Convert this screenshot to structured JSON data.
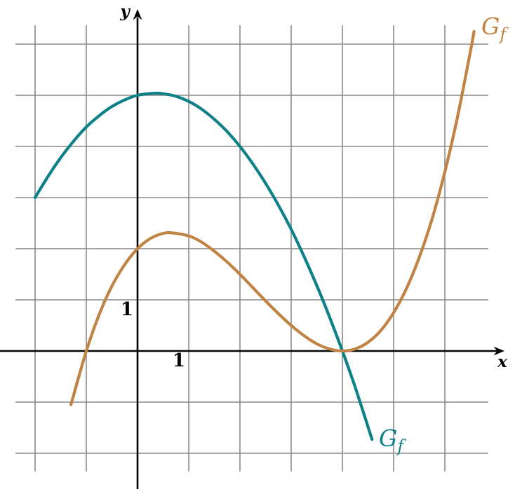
{
  "chart_data": {
    "type": "line",
    "title": "",
    "axes": {
      "xlabel": "x",
      "ylabel": "y",
      "x_tick_label": "1",
      "y_tick_label": "1",
      "xlim": [
        -2.4,
        7.2
      ],
      "ylim": [
        -2.4,
        6.6
      ],
      "grid": true,
      "x_gridlines": [
        -2,
        -1,
        0,
        1,
        2,
        3,
        4,
        5,
        6
      ],
      "y_gridlines": [
        -2,
        -1,
        0,
        1,
        2,
        3,
        4,
        5,
        6
      ],
      "grid_color": "#8a8a8a",
      "axis_color": "#000000"
    },
    "series": [
      {
        "name": "teal-parabola",
        "label_main": "G",
        "label_sub": "f",
        "color": "#0e8088",
        "key_points": {
          "left_end": [
            -2,
            3
          ],
          "vertex_max": [
            0.33,
            5.04
          ],
          "y_intercept": [
            0,
            5
          ],
          "x_intercept": [
            4,
            0
          ],
          "right_end": [
            4.58,
            -1.73
          ]
        },
        "points": [
          [
            -2,
            3
          ],
          [
            -1.75,
            3.41
          ],
          [
            -1.5,
            3.78
          ],
          [
            -1.25,
            4.1
          ],
          [
            -1,
            4.38
          ],
          [
            -0.75,
            4.6
          ],
          [
            -0.5,
            4.78
          ],
          [
            -0.25,
            4.91
          ],
          [
            0,
            5
          ],
          [
            0.33,
            5.04
          ],
          [
            0.5,
            5.03
          ],
          [
            0.75,
            4.98
          ],
          [
            1,
            4.88
          ],
          [
            1.25,
            4.73
          ],
          [
            1.5,
            4.53
          ],
          [
            1.75,
            4.29
          ],
          [
            2,
            4
          ],
          [
            2.25,
            3.66
          ],
          [
            2.5,
            3.28
          ],
          [
            2.75,
            2.85
          ],
          [
            3,
            2.38
          ],
          [
            3.25,
            1.85
          ],
          [
            3.5,
            1.28
          ],
          [
            3.75,
            0.66
          ],
          [
            4,
            0
          ],
          [
            4.25,
            -0.71
          ],
          [
            4.58,
            -1.73
          ]
        ]
      },
      {
        "name": "ochre-cubic",
        "label_main": "G",
        "label_sub": "f",
        "color": "#c18344",
        "key_points": {
          "left_end": [
            -1.3,
            -1.05
          ],
          "x_intercepts": [
            [
              -1,
              0
            ],
            [
              4,
              0
            ]
          ],
          "y_intercept": [
            0,
            2
          ],
          "local_max": [
            0.67,
            2.31
          ],
          "local_min": [
            4,
            0
          ],
          "right_end": [
            6.57,
            6.25
          ]
        },
        "points": [
          [
            -1.3,
            -1.05
          ],
          [
            -1,
            0
          ],
          [
            -0.75,
            0.71
          ],
          [
            -0.5,
            1.27
          ],
          [
            -0.25,
            1.69
          ],
          [
            0,
            2
          ],
          [
            0.25,
            2.2
          ],
          [
            0.5,
            2.3
          ],
          [
            0.67,
            2.31
          ],
          [
            1,
            2.25
          ],
          [
            1.25,
            2.13
          ],
          [
            1.5,
            1.95
          ],
          [
            1.75,
            1.74
          ],
          [
            2,
            1.5
          ],
          [
            2.25,
            1.24
          ],
          [
            2.5,
            0.98
          ],
          [
            2.75,
            0.73
          ],
          [
            3,
            0.5
          ],
          [
            3.25,
            0.3
          ],
          [
            3.5,
            0.14
          ],
          [
            3.75,
            0.04
          ],
          [
            4,
            0
          ],
          [
            4.25,
            0.04
          ],
          [
            4.5,
            0.17
          ],
          [
            4.75,
            0.4
          ],
          [
            5,
            0.75
          ],
          [
            5.25,
            1.22
          ],
          [
            5.5,
            1.83
          ],
          [
            5.75,
            2.58
          ],
          [
            6,
            3.5
          ],
          [
            6.25,
            4.59
          ],
          [
            6.5,
            5.86
          ],
          [
            6.57,
            6.25
          ]
        ]
      }
    ]
  }
}
